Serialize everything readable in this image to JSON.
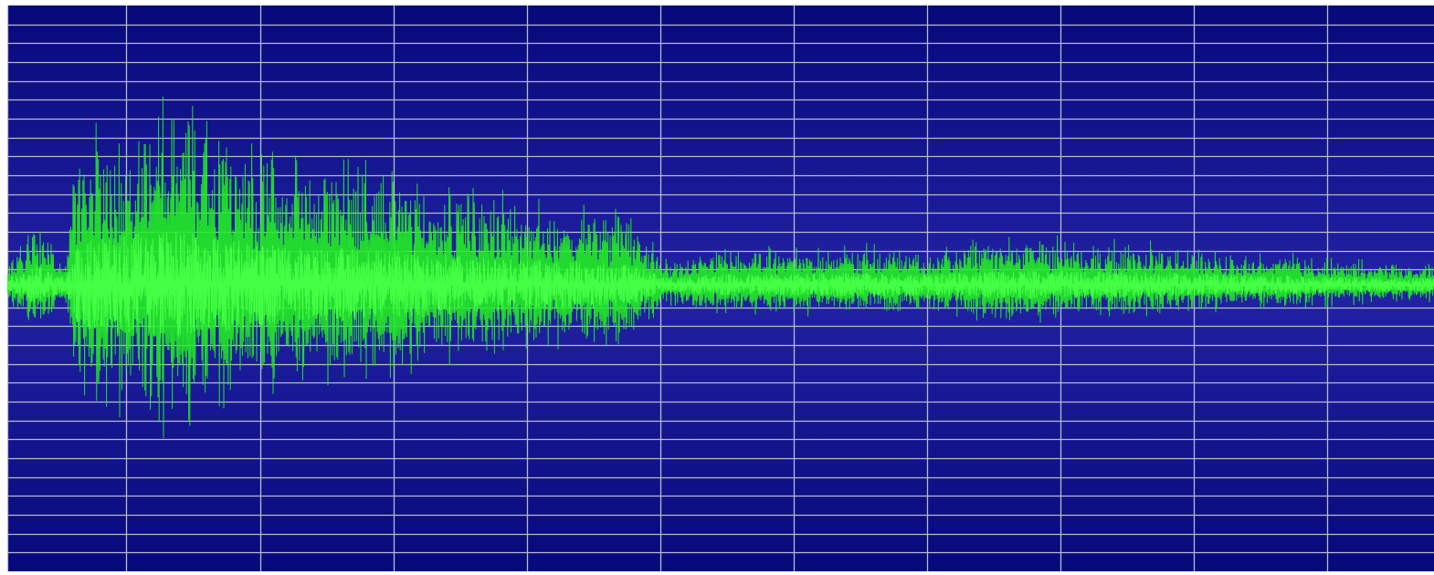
{
  "colors": {
    "background_edge": "#06097a",
    "background_center": "#2222a4",
    "grid": "#b9b9cc",
    "waveform": "#22ee22",
    "waveform_core": "#44ff44"
  },
  "grid": {
    "vertical_divisions": 11,
    "horizontal_divisions": 30
  },
  "waveform": {
    "envelope": [
      [
        0.0,
        0.1
      ],
      [
        0.02,
        0.35
      ],
      [
        0.04,
        0.12
      ],
      [
        0.05,
        0.72
      ],
      [
        0.08,
        0.82
      ],
      [
        0.11,
        0.92
      ],
      [
        0.15,
        0.8
      ],
      [
        0.2,
        0.62
      ],
      [
        0.25,
        0.6
      ],
      [
        0.3,
        0.52
      ],
      [
        0.35,
        0.44
      ],
      [
        0.4,
        0.4
      ],
      [
        0.44,
        0.34
      ],
      [
        0.46,
        0.12
      ],
      [
        0.5,
        0.18
      ],
      [
        0.55,
        0.19
      ],
      [
        0.6,
        0.2
      ],
      [
        0.65,
        0.18
      ],
      [
        0.7,
        0.24
      ],
      [
        0.75,
        0.23
      ],
      [
        0.8,
        0.21
      ],
      [
        0.85,
        0.18
      ],
      [
        0.9,
        0.15
      ],
      [
        0.95,
        0.12
      ],
      [
        1.0,
        0.11
      ]
    ]
  }
}
